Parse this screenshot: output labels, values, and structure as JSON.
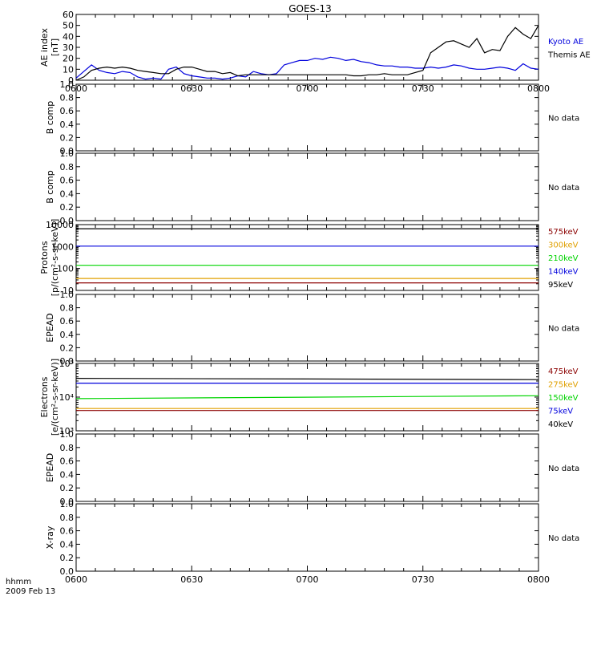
{
  "title": "GOES-13",
  "footer": {
    "time_label": "hhmm",
    "date_label": "2009 Feb 13"
  },
  "colors": {
    "axis": "#000000",
    "black": "#000000",
    "blue": "#0000dd",
    "green": "#00d400",
    "orange": "#e0a000",
    "darkred": "#8b0000"
  },
  "chart_data": [
    {
      "id": "ae",
      "type": "line",
      "ylabel": [
        "AE index",
        "[nT]"
      ],
      "ylim": [
        0,
        60
      ],
      "yticks": [
        "0",
        "10",
        "20",
        "30",
        "40",
        "50",
        "60"
      ],
      "tick_values": [
        0,
        10,
        20,
        30,
        40,
        50,
        60
      ],
      "xlim": [
        0,
        120
      ],
      "xticks": [
        "0600",
        "0630",
        "0700",
        "0730",
        "0800"
      ],
      "tick_minutes": [
        0,
        30,
        60,
        90,
        120
      ],
      "legend": [
        {
          "label": "Kyoto AE",
          "color": "#0000dd"
        },
        {
          "label": "Themis AE",
          "color": "#000000"
        }
      ],
      "series": [
        {
          "name": "Kyoto AE",
          "color": "#0000dd",
          "x": [
            0,
            2,
            4,
            6,
            8,
            10,
            12,
            14,
            16,
            18,
            20,
            22,
            24,
            26,
            28,
            30,
            32,
            34,
            36,
            38,
            40,
            42,
            44,
            46,
            48,
            50,
            52,
            54,
            56,
            58,
            60,
            62,
            64,
            66,
            68,
            70,
            72,
            74,
            76,
            78,
            80,
            82,
            84,
            86,
            88,
            90,
            92,
            94,
            96,
            98,
            100,
            102,
            104,
            106,
            108,
            110,
            112,
            114,
            116,
            118,
            120
          ],
          "y": [
            2,
            8,
            14,
            9,
            7,
            6,
            8,
            7,
            3,
            1,
            2,
            1,
            10,
            12,
            6,
            4,
            3,
            2,
            2,
            1,
            2,
            4,
            3,
            8,
            6,
            5,
            6,
            14,
            16,
            18,
            18,
            20,
            19,
            21,
            20,
            18,
            19,
            17,
            16,
            14,
            13,
            13,
            12,
            12,
            11,
            11,
            12,
            11,
            12,
            14,
            13,
            11,
            10,
            10,
            11,
            12,
            11,
            9,
            15,
            11,
            10
          ]
        },
        {
          "name": "Themis AE",
          "color": "#000000",
          "x": [
            0,
            2,
            4,
            6,
            8,
            10,
            12,
            14,
            16,
            18,
            20,
            22,
            24,
            26,
            28,
            30,
            32,
            34,
            36,
            38,
            40,
            42,
            44,
            46,
            48,
            50,
            52,
            54,
            56,
            58,
            60,
            62,
            64,
            66,
            68,
            70,
            72,
            74,
            76,
            78,
            80,
            82,
            84,
            86,
            88,
            90,
            92,
            94,
            96,
            98,
            100,
            102,
            104,
            106,
            108,
            110,
            112,
            114,
            116,
            118,
            120
          ],
          "y": [
            0,
            3,
            9,
            11,
            12,
            11,
            12,
            11,
            9,
            8,
            7,
            6,
            6,
            10,
            12,
            12,
            10,
            8,
            8,
            6,
            7,
            4,
            5,
            5,
            5,
            5,
            5,
            5,
            5,
            5,
            5,
            5,
            5,
            5,
            5,
            5,
            4,
            4,
            5,
            5,
            6,
            5,
            5,
            5,
            7,
            9,
            25,
            30,
            35,
            36,
            33,
            30,
            38,
            25,
            28,
            27,
            40,
            48,
            42,
            38,
            50
          ]
        }
      ]
    },
    {
      "id": "bcomp1",
      "type": "line",
      "ylabel": [
        "B comp"
      ],
      "ylim": [
        0,
        1
      ],
      "yticks": [
        "0.0",
        "0.2",
        "0.4",
        "0.6",
        "0.8",
        "1.0"
      ],
      "tick_values": [
        0,
        0.2,
        0.4,
        0.6,
        0.8,
        1.0
      ],
      "xlim": [
        0,
        120
      ],
      "legend": [
        {
          "label": "No data",
          "color": "#000000"
        }
      ],
      "series": []
    },
    {
      "id": "bcomp2",
      "type": "line",
      "ylabel": [
        "B comp"
      ],
      "ylim": [
        0,
        1
      ],
      "yticks": [
        "0.0",
        "0.2",
        "0.4",
        "0.6",
        "0.8",
        "1.0"
      ],
      "tick_values": [
        0,
        0.2,
        0.4,
        0.6,
        0.8,
        1.0
      ],
      "xlim": [
        0,
        120
      ],
      "legend": [
        {
          "label": "No data",
          "color": "#000000"
        }
      ],
      "series": []
    },
    {
      "id": "protons",
      "type": "line",
      "scale": "log",
      "ylabel": [
        "Protons",
        "[p/(cm²-s-sr-keV)]"
      ],
      "ylim": [
        10,
        10000
      ],
      "yticks": [
        "10",
        "100",
        "1000",
        "10000"
      ],
      "tick_values": [
        10,
        100,
        1000,
        10000
      ],
      "xlim": [
        0,
        120
      ],
      "legend": [
        {
          "label": "575keV",
          "color": "#8b0000"
        },
        {
          "label": "300keV",
          "color": "#e0a000"
        },
        {
          "label": "210keV",
          "color": "#00d400"
        },
        {
          "label": "140keV",
          "color": "#0000dd"
        },
        {
          "label": "95keV",
          "color": "#000000"
        }
      ],
      "series": [
        {
          "name": "95keV",
          "color": "#000000",
          "x": [
            0,
            120
          ],
          "y": [
            6500,
            6500
          ]
        },
        {
          "name": "140keV",
          "color": "#0000dd",
          "x": [
            0,
            120
          ],
          "y": [
            1050,
            1050
          ]
        },
        {
          "name": "210keV",
          "color": "#00d400",
          "x": [
            0,
            120
          ],
          "y": [
            140,
            140
          ]
        },
        {
          "name": "300keV",
          "color": "#e0a000",
          "x": [
            0,
            120
          ],
          "y": [
            35,
            35
          ]
        },
        {
          "name": "575keV",
          "color": "#8b0000",
          "x": [
            0,
            120
          ],
          "y": [
            22,
            22
          ]
        }
      ]
    },
    {
      "id": "epead1",
      "type": "line",
      "ylabel": [
        "EPEAD"
      ],
      "ylim": [
        0,
        1
      ],
      "yticks": [
        "0.0",
        "0.2",
        "0.4",
        "0.6",
        "0.8",
        "1.0"
      ],
      "tick_values": [
        0,
        0.2,
        0.4,
        0.6,
        0.8,
        1.0
      ],
      "xlim": [
        0,
        120
      ],
      "legend": [
        {
          "label": "No data",
          "color": "#000000"
        }
      ],
      "series": []
    },
    {
      "id": "electrons",
      "type": "line",
      "scale": "log",
      "ylabel": [
        "Electrons",
        "[e/(cm²-s-sr-keV)]"
      ],
      "ylim": [
        1000,
        100000
      ],
      "yticks": [
        "10³",
        "10⁴",
        "10⁵"
      ],
      "tick_values": [
        1000,
        10000,
        100000
      ],
      "xlim": [
        0,
        120
      ],
      "legend": [
        {
          "label": "475keV",
          "color": "#8b0000"
        },
        {
          "label": "275keV",
          "color": "#e0a000"
        },
        {
          "label": "150keV",
          "color": "#00d400"
        },
        {
          "label": "75keV",
          "color": "#0000dd"
        },
        {
          "label": "40keV",
          "color": "#000000"
        }
      ],
      "series": [
        {
          "name": "40keV",
          "color": "#000000",
          "x": [
            0,
            120
          ],
          "y": [
            36000,
            33000
          ]
        },
        {
          "name": "75keV",
          "color": "#0000dd",
          "x": [
            0,
            120
          ],
          "y": [
            26000,
            26000
          ]
        },
        {
          "name": "150keV",
          "color": "#00d400",
          "x": [
            0,
            120
          ],
          "y": [
            9000,
            11000
          ]
        },
        {
          "name": "275keV",
          "color": "#e0a000",
          "x": [
            0,
            120
          ],
          "y": [
            4600,
            4600
          ]
        },
        {
          "name": "475keV",
          "color": "#8b0000",
          "x": [
            0,
            120
          ],
          "y": [
            4000,
            4000
          ]
        }
      ]
    },
    {
      "id": "epead2",
      "type": "line",
      "ylabel": [
        "EPEAD"
      ],
      "ylim": [
        0,
        1
      ],
      "yticks": [
        "0.0",
        "0.2",
        "0.4",
        "0.6",
        "0.8",
        "1.0"
      ],
      "tick_values": [
        0,
        0.2,
        0.4,
        0.6,
        0.8,
        1.0
      ],
      "xlim": [
        0,
        120
      ],
      "legend": [
        {
          "label": "No data",
          "color": "#000000"
        }
      ],
      "series": []
    },
    {
      "id": "xray",
      "type": "line",
      "ylabel": [
        "X-ray"
      ],
      "ylim": [
        0,
        1
      ],
      "yticks": [
        "0.0",
        "0.2",
        "0.4",
        "0.6",
        "0.8",
        "1.0"
      ],
      "tick_values": [
        0,
        0.2,
        0.4,
        0.6,
        0.8,
        1.0
      ],
      "xlim": [
        0,
        120
      ],
      "xticks": [
        "0600",
        "0630",
        "0700",
        "0730",
        "0800"
      ],
      "tick_minutes": [
        0,
        30,
        60,
        90,
        120
      ],
      "legend": [
        {
          "label": "No data",
          "color": "#000000"
        }
      ],
      "series": []
    }
  ]
}
